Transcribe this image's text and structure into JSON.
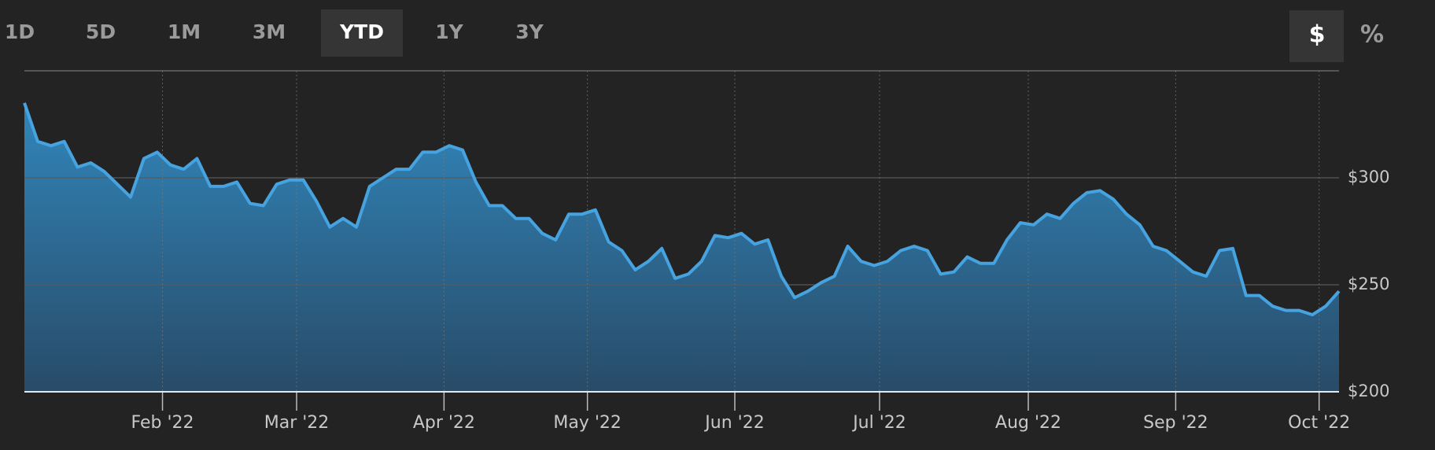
{
  "chart_data": {
    "type": "area",
    "range_options": [
      "1D",
      "5D",
      "1M",
      "3M",
      "YTD",
      "1Y",
      "3Y"
    ],
    "active_range": 4,
    "unit_options": [
      "$",
      "%"
    ],
    "active_unit": 0,
    "values": [
      335,
      317,
      315,
      317,
      305,
      307,
      303,
      297,
      291,
      309,
      312,
      306,
      304,
      309,
      296,
      296,
      298,
      288,
      287,
      297,
      299,
      299,
      289,
      277,
      281,
      277,
      296,
      300,
      304,
      304,
      312,
      312,
      315,
      313,
      298,
      287,
      287,
      281,
      281,
      274,
      271,
      283,
      283,
      285,
      270,
      266,
      257,
      261,
      267,
      253,
      255,
      261,
      273,
      272,
      274,
      269,
      271,
      254,
      244,
      247,
      251,
      254,
      268,
      261,
      259,
      261,
      266,
      268,
      266,
      255,
      256,
      263,
      260,
      260,
      271,
      279,
      278,
      283,
      281,
      288,
      293,
      294,
      290,
      283,
      278,
      268,
      266,
      261,
      256,
      254,
      266,
      267,
      245,
      245,
      240,
      238,
      238,
      236,
      240,
      247
    ],
    "color": "#46a3e0",
    "xlim": [
      0,
      99
    ],
    "xticks": [
      {
        "value": 10.4,
        "label": "Feb '22"
      },
      {
        "value": 20.5,
        "label": "Mar '22"
      },
      {
        "value": 31.6,
        "label": "Apr '22"
      },
      {
        "value": 42.4,
        "label": "May '22"
      },
      {
        "value": 53.5,
        "label": "Jun '22"
      },
      {
        "value": 64.4,
        "label": "Jul '22"
      },
      {
        "value": 75.6,
        "label": "Aug '22"
      },
      {
        "value": 86.7,
        "label": "Sep '22"
      },
      {
        "value": 97.5,
        "label": "Oct '22"
      }
    ],
    "ylim": [
      200,
      350
    ],
    "yticks": [
      {
        "value": 200,
        "label": "$200"
      },
      {
        "value": 250,
        "label": "$250"
      },
      {
        "value": 300,
        "label": "$300"
      }
    ],
    "grid": true
  }
}
